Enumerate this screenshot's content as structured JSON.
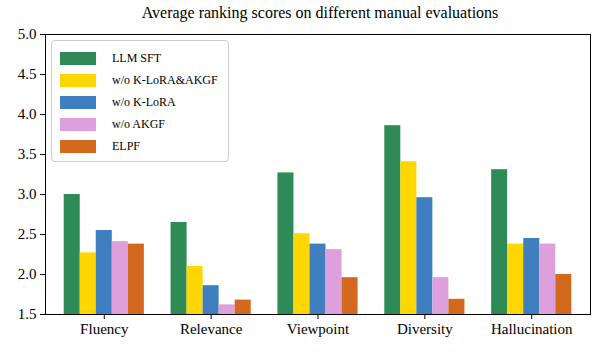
{
  "chart_data": {
    "type": "bar",
    "title": "Average ranking scores on different manual evaluations",
    "categories": [
      "Fluency",
      "Relevance",
      "Viewpoint",
      "Diversity",
      "Hallucination"
    ],
    "series": [
      {
        "name": "LLM SFT",
        "color": "#2e8b57",
        "values": [
          3.0,
          2.65,
          3.27,
          3.86,
          3.31
        ]
      },
      {
        "name": "w/o K-LoRA&AKGF",
        "color": "#ffd700",
        "values": [
          2.27,
          2.1,
          2.51,
          3.41,
          2.38
        ]
      },
      {
        "name": "w/o K-LoRA",
        "color": "#3f7fbf",
        "values": [
          2.55,
          1.86,
          2.38,
          2.96,
          2.45
        ]
      },
      {
        "name": "w/o AKGF",
        "color": "#dda0dd",
        "values": [
          2.41,
          1.62,
          2.31,
          1.96,
          2.38
        ]
      },
      {
        "name": "ELPF",
        "color": "#d2691e",
        "values": [
          2.38,
          1.68,
          1.96,
          1.69,
          2.0
        ]
      }
    ],
    "ylim": [
      1.5,
      5.0
    ],
    "yticks": [
      1.5,
      {
        "value": 2.0,
        "label": "2.0"
      },
      2.5,
      {
        "value": 3.0,
        "label": "3.0"
      },
      3.5,
      {
        "value": 4.0,
        "label": "4.0"
      },
      4.5,
      {
        "value": 5.0,
        "label": "5.0"
      }
    ],
    "legend": "upper left",
    "grid": false
  }
}
